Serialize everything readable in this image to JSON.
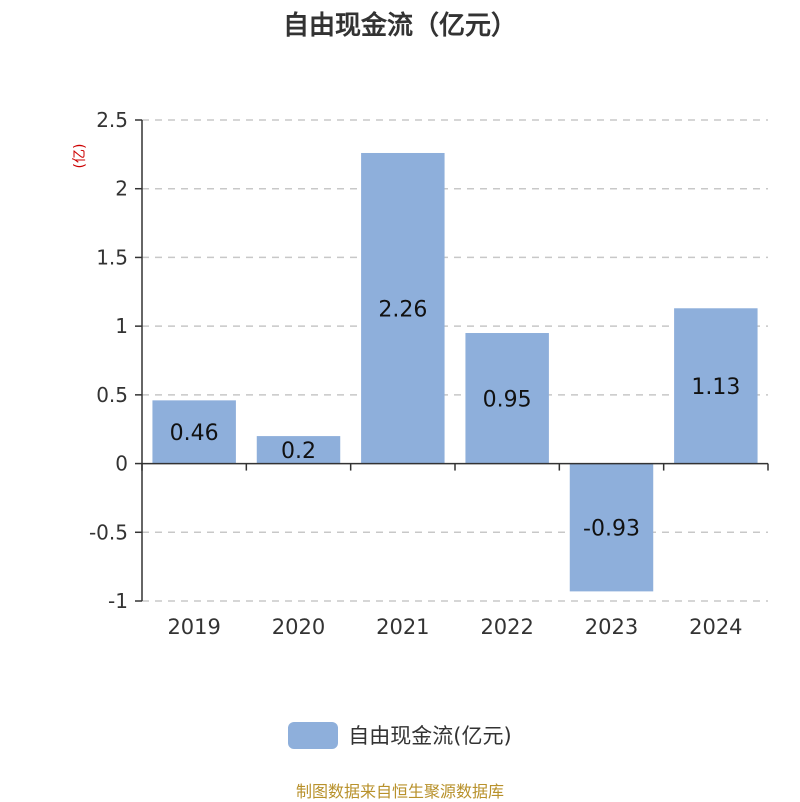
{
  "chart_data": {
    "type": "bar",
    "title": "自由现金流（亿元）",
    "unit_label": "(亿)",
    "categories": [
      "2019",
      "2020",
      "2021",
      "2022",
      "2023",
      "2024"
    ],
    "series": [
      {
        "name": "自由现金流(亿元)",
        "values": [
          0.46,
          0.2,
          2.26,
          0.95,
          -0.93,
          1.13
        ],
        "labels": [
          "0.46",
          "0.2",
          "2.26",
          "0.95",
          "-0.93",
          "1.13"
        ]
      }
    ],
    "ylim": [
      -1,
      2.5
    ],
    "yticks": [
      -1,
      -0.5,
      0,
      0.5,
      1,
      1.5,
      2,
      2.5
    ],
    "ytick_labels": [
      "-1",
      "-0.5",
      "0",
      "0.5",
      "1",
      "1.5",
      "2",
      "2.5"
    ],
    "grid": true,
    "legend_position": "bottom",
    "colors": {
      "bar": "#8eafdb",
      "title": "#333333",
      "unit": "#cc0000",
      "axis": "#333333",
      "grid": "#c8c8c8",
      "source": "#b8912b"
    }
  },
  "footer": {
    "source": "制图数据来自恒生聚源数据库"
  }
}
